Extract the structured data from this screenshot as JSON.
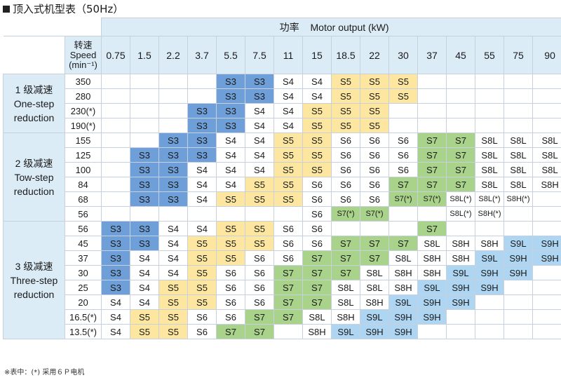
{
  "title": "顶入式机型表（50Hz）",
  "header": {
    "power_cn": "功率",
    "power_en": "Motor output (kW)",
    "speed_line1": "转速",
    "speed_line2": "Speed",
    "speed_line3": "(min⁻¹)"
  },
  "powers": [
    "0.75",
    "1.5",
    "2.2",
    "3.7",
    "5.5",
    "7.5",
    "11",
    "15",
    "18.5",
    "22",
    "30",
    "37",
    "45",
    "55",
    "75",
    "90"
  ],
  "groups": [
    {
      "cn": "1 级减速",
      "en1": "One-step",
      "en2": "reduction",
      "rows": [
        {
          "speed": "350",
          "cells": [
            "",
            "",
            "",
            "",
            "S3",
            "S3",
            "S4",
            "S4",
            "S5",
            "S5",
            "S5",
            "",
            "",
            "",
            "",
            ""
          ]
        },
        {
          "speed": "280",
          "cells": [
            "",
            "",
            "",
            "",
            "S3",
            "S3",
            "S4",
            "S4",
            "S5",
            "S5",
            "S5",
            "",
            "",
            "",
            "",
            ""
          ]
        },
        {
          "speed": "230(*)",
          "cells": [
            "",
            "",
            "",
            "S3",
            "S3",
            "S4",
            "S4",
            "S5",
            "S5",
            "S5",
            "",
            "",
            "",
            "",
            "",
            ""
          ]
        },
        {
          "speed": "190(*)",
          "cells": [
            "",
            "",
            "",
            "S3",
            "S3",
            "S4",
            "S4",
            "S5",
            "S5",
            "S5",
            "",
            "",
            "",
            "",
            "",
            ""
          ]
        }
      ]
    },
    {
      "cn": "2 级减速",
      "en1": "Tow-step",
      "en2": "reduction",
      "rows": [
        {
          "speed": "155",
          "cells": [
            "",
            "",
            "S3",
            "S3",
            "S4",
            "S4",
            "S5",
            "S5",
            "S6",
            "S6",
            "S6",
            "S7",
            "S7",
            "S8L",
            "S8L",
            "S8L"
          ]
        },
        {
          "speed": "125",
          "cells": [
            "",
            "S3",
            "S3",
            "S3",
            "S4",
            "S4",
            "S5",
            "S5",
            "S6",
            "S6",
            "S6",
            "S7",
            "S7",
            "S8L",
            "S8L",
            "S8L"
          ]
        },
        {
          "speed": "100",
          "cells": [
            "",
            "S3",
            "S3",
            "S4",
            "S4",
            "S4",
            "S5",
            "S5",
            "S6",
            "S6",
            "S6",
            "S7",
            "S7",
            "S8L",
            "S8L",
            "S8L"
          ]
        },
        {
          "speed": "84",
          "cells": [
            "",
            "S3",
            "S3",
            "S4",
            "S4",
            "S5",
            "S5",
            "S6",
            "S6",
            "S6",
            "S7",
            "S7",
            "S7",
            "S8L",
            "S8L",
            "S8H"
          ]
        },
        {
          "speed": "68",
          "cells": [
            "",
            "S3",
            "S3",
            "S4",
            "S5",
            "S5",
            "S5",
            "S6",
            "S6",
            "S6",
            "S7(*)",
            "S7(*)",
            "S8L(*)",
            "S8L(*)",
            "S8H(*)",
            ""
          ]
        },
        {
          "speed": "56",
          "cells": [
            "",
            "",
            "",
            "",
            "",
            "",
            "",
            "S6",
            "S7(*)",
            "S7(*)",
            "",
            "",
            "S8L(*)",
            "S8H(*)",
            "",
            ""
          ]
        }
      ]
    },
    {
      "cn": "3 级减速",
      "en1": "Three-step",
      "en2": "reduction",
      "rows": [
        {
          "speed": "56",
          "cells": [
            "S3",
            "S3",
            "S4",
            "S4",
            "S5",
            "S5",
            "S6",
            "S6",
            "",
            "",
            "",
            "S7",
            "",
            "",
            "",
            ""
          ]
        },
        {
          "speed": "45",
          "cells": [
            "S3",
            "S3",
            "S4",
            "S5",
            "S5",
            "S5",
            "S6",
            "S6",
            "S7",
            "S7",
            "S7",
            "S8L",
            "S8H",
            "S8H",
            "S9L",
            "S9H"
          ]
        },
        {
          "speed": "37",
          "cells": [
            "S3",
            "S4",
            "S4",
            "S5",
            "S5",
            "S6",
            "S6",
            "S7",
            "S7",
            "S7",
            "S8L",
            "S8H",
            "S8H",
            "S9L",
            "S9H",
            "S9H"
          ]
        },
        {
          "speed": "30",
          "cells": [
            "S3",
            "S4",
            "S4",
            "S5",
            "S6",
            "S6",
            "S7",
            "S7",
            "S7",
            "S8L",
            "S8H",
            "S8H",
            "S9L",
            "S9H",
            "S9H",
            ""
          ]
        },
        {
          "speed": "25",
          "cells": [
            "S3",
            "S4",
            "S5",
            "S5",
            "S6",
            "S6",
            "S7",
            "S7",
            "S8L",
            "S8L",
            "S8H",
            "S9L",
            "S9H",
            "S9H",
            "",
            ""
          ]
        },
        {
          "speed": "20",
          "cells": [
            "S4",
            "S4",
            "S5",
            "S5",
            "S6",
            "S6",
            "S7",
            "S7",
            "S8L",
            "S8H",
            "S9L",
            "S9H",
            "S9H",
            "",
            "",
            ""
          ]
        },
        {
          "speed": "16.5(*)",
          "cells": [
            "S4",
            "S5",
            "S5",
            "S6",
            "S6",
            "S7",
            "S7",
            "S8L",
            "S8H",
            "S9L",
            "S9H",
            "S9H",
            "",
            "",
            "",
            ""
          ]
        },
        {
          "speed": "13.5(*)",
          "cells": [
            "S4",
            "S5",
            "S5",
            "S6",
            "S7",
            "S7",
            "",
            "S8H",
            "S9L",
            "S9H",
            "S9H",
            "",
            "",
            "",
            "",
            ""
          ]
        }
      ]
    }
  ],
  "colors": {
    "S3": "#6f9fd8",
    "S5": "#fde7a0",
    "S7": "#a9d28a",
    "S9": "#aed6f2",
    "header": "#dcecf7"
  },
  "footnote": "※表中：(*) 采用６Ｐ电机"
}
